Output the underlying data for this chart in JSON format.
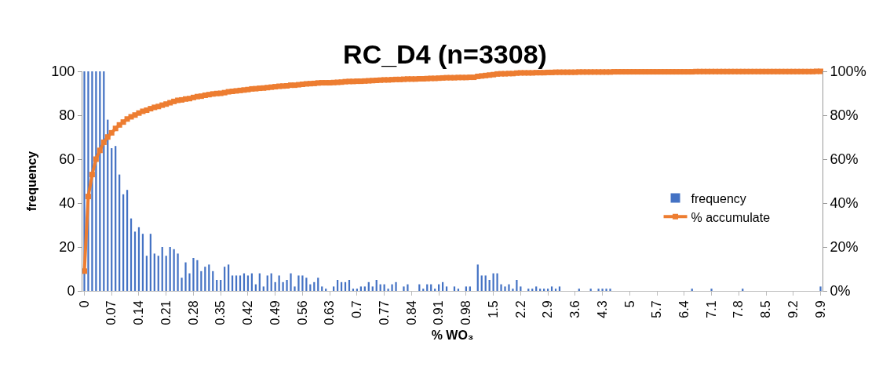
{
  "chart_data": {
    "type": "bar",
    "title": "RC_D4 (n=3308)",
    "xlabel": "% WO₃",
    "ylabel": "frequency",
    "categories": [
      "0",
      null,
      null,
      null,
      null,
      null,
      null,
      "0.07",
      null,
      null,
      null,
      null,
      null,
      null,
      "0.14",
      null,
      null,
      null,
      null,
      null,
      null,
      "0.21",
      null,
      null,
      null,
      null,
      null,
      null,
      "0.28",
      null,
      null,
      null,
      null,
      null,
      null,
      "0.35",
      null,
      null,
      null,
      null,
      null,
      null,
      "0.42",
      null,
      null,
      null,
      null,
      null,
      null,
      "0.49",
      null,
      null,
      null,
      null,
      null,
      null,
      "0.56",
      null,
      null,
      null,
      null,
      null,
      null,
      "0.63",
      null,
      null,
      null,
      null,
      null,
      null,
      "0.7",
      null,
      null,
      null,
      null,
      null,
      null,
      "0.77",
      null,
      null,
      null,
      null,
      null,
      null,
      "0.84",
      null,
      null,
      null,
      null,
      null,
      null,
      "0.91",
      null,
      null,
      null,
      null,
      null,
      null,
      "0.98",
      null,
      null,
      null,
      null,
      null,
      null,
      "1.5",
      null,
      null,
      null,
      null,
      null,
      null,
      "2.2",
      null,
      null,
      null,
      null,
      null,
      null,
      "2.9",
      null,
      null,
      null,
      null,
      null,
      null,
      "3.6",
      null,
      null,
      null,
      null,
      null,
      null,
      "4.3",
      null,
      null,
      null,
      null,
      null,
      null,
      "5",
      null,
      null,
      null,
      null,
      null,
      null,
      "5.7",
      null,
      null,
      null,
      null,
      null,
      null,
      "6.4",
      null,
      null,
      null,
      null,
      null,
      null,
      "7.1",
      null,
      null,
      null,
      null,
      null,
      null,
      "7.8",
      null,
      null,
      null,
      null,
      null,
      null,
      "8.5",
      null,
      null,
      null,
      null,
      null,
      null,
      "9.2",
      null,
      null,
      null,
      null,
      null,
      null,
      "9.9"
    ],
    "series": [
      {
        "name": "frequency",
        "color": "#4472c4",
        "values": [
          100,
          100,
          100,
          100,
          100,
          100,
          78,
          65,
          66,
          53,
          44,
          46,
          33,
          27,
          29,
          26,
          16,
          26,
          17,
          16,
          20,
          16,
          20,
          19,
          17,
          6,
          13,
          8,
          15,
          14,
          9,
          11,
          12,
          9,
          5,
          5,
          11,
          12,
          7,
          7,
          7,
          8,
          7,
          8,
          3,
          8,
          2,
          7,
          8,
          4,
          7,
          4,
          5,
          8,
          2,
          7,
          7,
          6,
          3,
          4,
          6,
          2,
          1,
          0,
          2,
          5,
          4,
          4,
          5,
          1,
          1,
          2,
          2,
          4,
          2,
          5,
          3,
          3,
          1,
          3,
          4,
          0,
          2,
          3,
          0,
          0,
          3,
          1,
          3,
          3,
          1,
          3,
          4,
          2,
          0,
          2,
          1,
          0,
          2,
          2,
          0,
          12,
          7,
          7,
          5,
          8,
          8,
          3,
          2,
          3,
          1,
          5,
          2,
          0,
          1,
          1,
          2,
          1,
          1,
          1,
          2,
          1,
          2,
          0,
          0,
          0,
          0,
          1,
          0,
          0,
          1,
          0,
          1,
          1,
          1,
          1,
          0,
          0,
          0,
          0,
          0,
          0,
          0,
          0,
          0,
          0,
          0,
          0,
          0,
          0,
          0,
          0,
          0,
          0,
          0,
          0,
          1,
          0,
          0,
          0,
          0,
          1,
          0,
          0,
          0,
          0,
          0,
          0,
          0,
          1,
          0,
          0,
          0,
          0,
          0,
          0,
          0,
          0,
          0,
          0,
          0,
          0,
          0,
          0,
          0,
          0,
          0,
          0,
          0,
          2
        ]
      },
      {
        "name": "% accumulate",
        "type": "line",
        "axis": "y2",
        "color": "#ed7d31",
        "marker": "square",
        "values": [
          9,
          43,
          53,
          60,
          64,
          67.7,
          70.1,
          72,
          74,
          75.6,
          76.9,
          78.3,
          79.3,
          80.1,
          81,
          81.8,
          82.3,
          83,
          83.6,
          84,
          84.6,
          85.1,
          85.7,
          86.3,
          86.8,
          87,
          87.4,
          87.6,
          88.1,
          88.5,
          88.7,
          89.1,
          89.4,
          89.7,
          89.9,
          90,
          90.3,
          90.7,
          90.9,
          91.1,
          91.3,
          91.5,
          91.7,
          92,
          92.1,
          92.3,
          92.4,
          92.6,
          92.8,
          93,
          93.2,
          93.3,
          93.4,
          93.7,
          93.7,
          93.9,
          94.1,
          94.3,
          94.4,
          94.5,
          94.7,
          94.8,
          94.8,
          94.8,
          94.9,
          95,
          95.1,
          95.3,
          95.4,
          95.4,
          95.5,
          95.5,
          95.6,
          95.7,
          95.8,
          95.9,
          96,
          96.1,
          96.1,
          96.2,
          96.3,
          96.3,
          96.4,
          96.5,
          96.5,
          96.5,
          96.6,
          96.6,
          96.7,
          96.8,
          96.8,
          96.9,
          97,
          97.1,
          97.1,
          97.1,
          97.2,
          97.2,
          97.2,
          97.3,
          97.3,
          97.7,
          97.9,
          98.1,
          98.3,
          98.5,
          98.8,
          98.9,
          98.9,
          99,
          99,
          99.2,
          99.3,
          99.3,
          99.3,
          99.3,
          99.4,
          99.4,
          99.4,
          99.5,
          99.5,
          99.6,
          99.6,
          99.6,
          99.6,
          99.6,
          99.6,
          99.7,
          99.7,
          99.7,
          99.7,
          99.7,
          99.7,
          99.7,
          99.7,
          99.7,
          99.8,
          99.8,
          99.8,
          99.8,
          99.8,
          99.8,
          99.8,
          99.8,
          99.8,
          99.8,
          99.8,
          99.8,
          99.8,
          99.8,
          99.8,
          99.8,
          99.8,
          99.8,
          99.8,
          99.8,
          99.8,
          99.9,
          99.9,
          99.9,
          99.9,
          99.9,
          99.9,
          99.9,
          99.9,
          99.9,
          99.9,
          99.9,
          99.9,
          99.9,
          99.9,
          99.9,
          99.9,
          99.9,
          99.9,
          99.9,
          99.9,
          99.9,
          99.9,
          99.9,
          99.9,
          99.9,
          99.9,
          99.9,
          99.9,
          99.9,
          99.9,
          99.9,
          100,
          100
        ]
      }
    ],
    "ylim": [
      0,
      100
    ],
    "yticks": [
      0,
      20,
      40,
      60,
      80,
      100
    ],
    "y2lim": [
      0,
      100
    ],
    "y2ticks": [
      {
        "value": 0,
        "label": "0%"
      },
      {
        "value": 20,
        "label": "20%"
      },
      {
        "value": 40,
        "label": "40%"
      },
      {
        "value": 60,
        "label": "60%"
      },
      {
        "value": 80,
        "label": "80%"
      },
      {
        "value": 100,
        "label": "100%"
      }
    ],
    "grid": false,
    "legend": "right"
  }
}
